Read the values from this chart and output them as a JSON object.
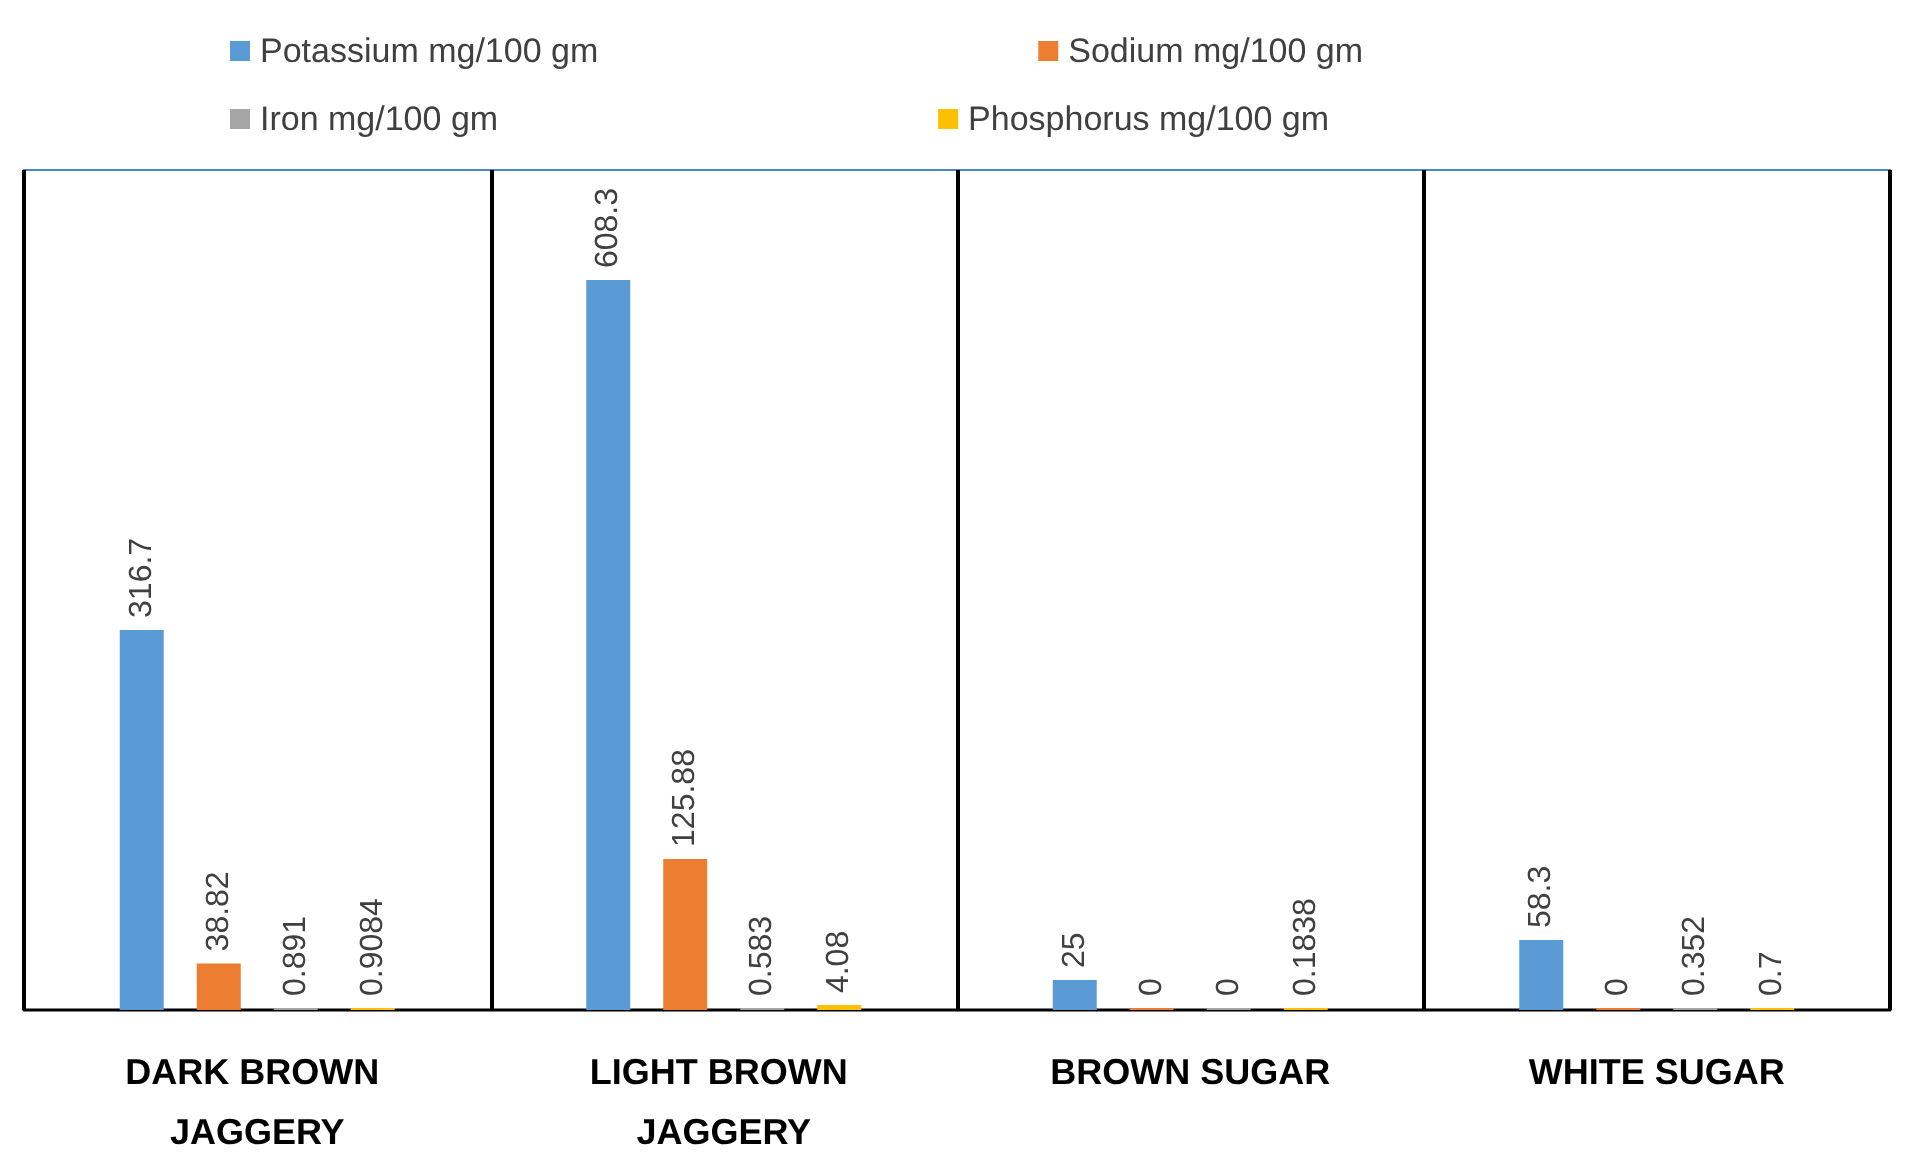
{
  "chart_data": {
    "type": "bar",
    "categories": [
      "DARK BROWN JAGGERY",
      "LIGHT BROWN JAGGERY",
      "BROWN SUGAR",
      "WHITE SUGAR"
    ],
    "series": [
      {
        "name": "Potassium mg/100 gm",
        "color": "#5b9bd5",
        "values": [
          316.7,
          608.3,
          25,
          58.3
        ]
      },
      {
        "name": "Sodium mg/100 gm",
        "color": "#ed7d31",
        "values": [
          38.82,
          125.88,
          0,
          0
        ]
      },
      {
        "name": "Iron mg/100 gm",
        "color": "#a5a5a5",
        "values": [
          0.891,
          0.583,
          0,
          0.352
        ]
      },
      {
        "name": "Phosphorus mg/100 gm",
        "color": "#ffc000",
        "values": [
          0.9084,
          4.08,
          0.1838,
          0.7
        ]
      }
    ],
    "data_labels": true,
    "grid": "x",
    "legend": "top"
  }
}
